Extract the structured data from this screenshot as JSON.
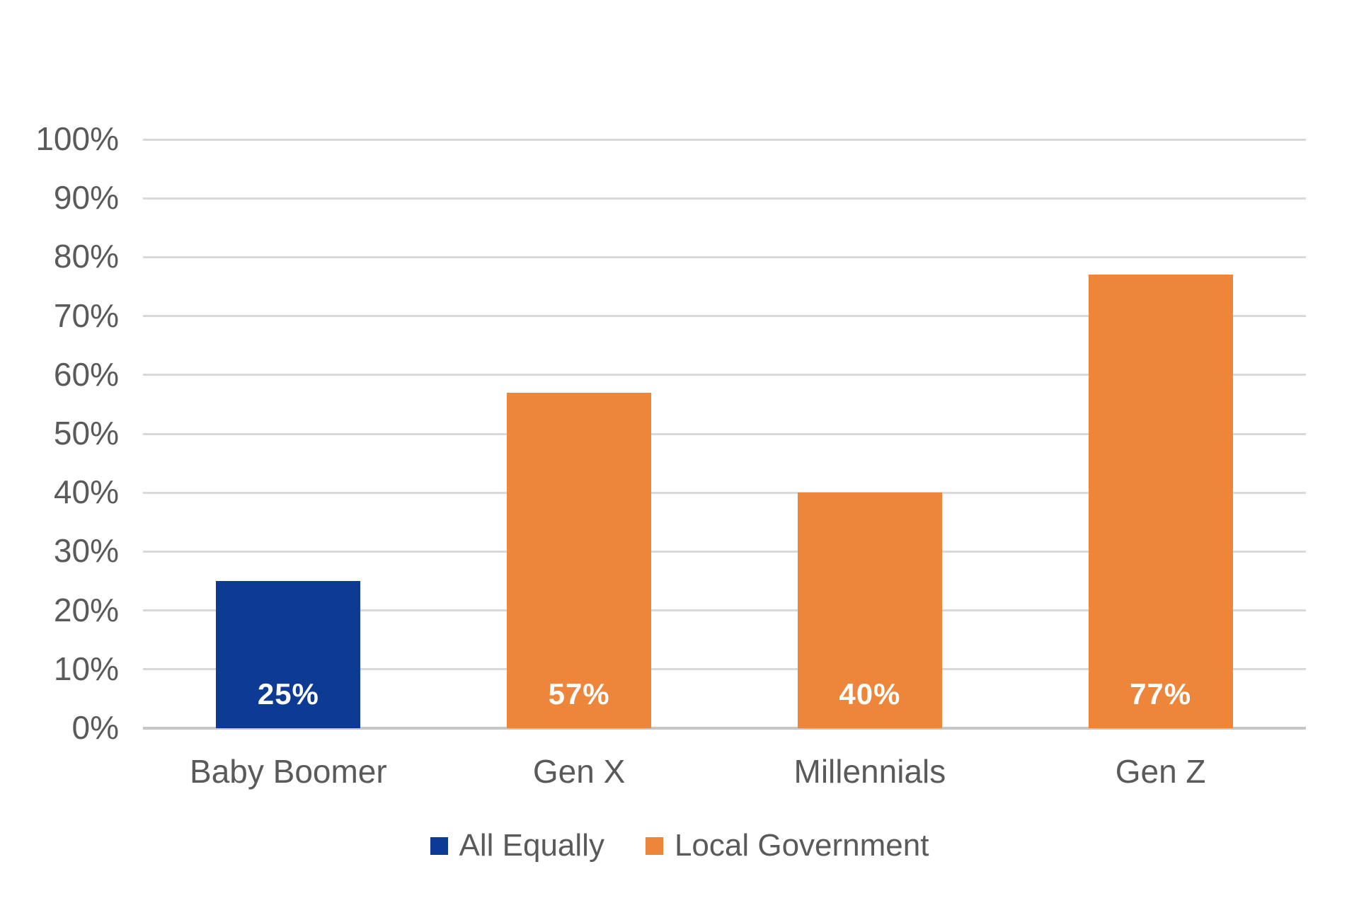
{
  "chart_data": {
    "type": "bar",
    "title": "",
    "xlabel": "",
    "ylabel": "",
    "categories": [
      "Baby Boomer",
      "Gen X",
      "Millennials",
      "Gen Z"
    ],
    "series": [
      {
        "name": "All Equally",
        "color": "#0d3b93"
      },
      {
        "name": "Local Government",
        "color": "#ed863a"
      }
    ],
    "bars": [
      {
        "category": "Baby Boomer",
        "series": "All Equally",
        "value": 25,
        "label": "25%"
      },
      {
        "category": "Gen X",
        "series": "Local Government",
        "value": 57,
        "label": "57%"
      },
      {
        "category": "Millennials",
        "series": "Local Government",
        "value": 40,
        "label": "40%"
      },
      {
        "category": "Gen Z",
        "series": "Local Government",
        "value": 77,
        "label": "77%"
      }
    ],
    "ylim": [
      0,
      100
    ],
    "ytick_step": 10,
    "ytick_labels": [
      "0%",
      "10%",
      "20%",
      "30%",
      "40%",
      "50%",
      "60%",
      "70%",
      "80%",
      "90%",
      "100%"
    ],
    "grid": true,
    "legend_position": "bottom",
    "colors": {
      "value_label_text": "#ffffff",
      "axis_text": "#5a5a5a",
      "gridline": "#d9d9d9",
      "baseline": "#c6c6c6",
      "background": "#ffffff"
    }
  }
}
